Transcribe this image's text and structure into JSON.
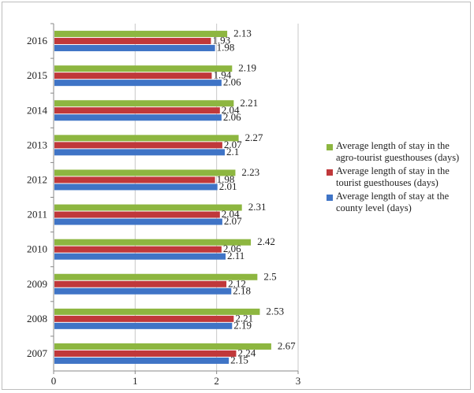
{
  "chart_data": {
    "type": "bar",
    "orientation": "horizontal",
    "categories": [
      "2007",
      "2008",
      "2009",
      "2010",
      "2011",
      "2012",
      "2013",
      "2014",
      "2015",
      "2016"
    ],
    "series": [
      {
        "name": "Average length of stay in the agro-tourist guesthouses (days)",
        "color": "#8db640",
        "values": [
          2.67,
          2.53,
          2.5,
          2.42,
          2.31,
          2.23,
          2.27,
          2.21,
          2.19,
          2.13
        ],
        "labels": [
          "2.67",
          "2.53",
          "2.5",
          "2.42",
          "2.31",
          "2.23",
          "2.27",
          "2.21",
          "2.19",
          "2.13"
        ]
      },
      {
        "name": "Average length of stay in the tourist guesthouses (days)",
        "color": "#c0383a",
        "values": [
          2.24,
          2.21,
          2.12,
          2.06,
          2.04,
          1.98,
          2.07,
          2.04,
          1.94,
          1.93
        ],
        "labels": [
          "2.24",
          "2.21",
          "2.12",
          "2.06",
          "2.04",
          "1.98",
          "2.07",
          "2.04",
          "1.94",
          "1.93"
        ]
      },
      {
        "name": "Average length of stay at the county level (days)",
        "color": "#3f74c6",
        "values": [
          2.15,
          2.19,
          2.18,
          2.11,
          2.07,
          2.01,
          2.1,
          2.06,
          2.06,
          1.98
        ],
        "labels": [
          "2.15",
          "2.19",
          "2.18",
          "2.11",
          "2.07",
          "2.01",
          "2.1",
          "2.06",
          "2.06",
          "1.98"
        ]
      }
    ],
    "xlim": [
      0,
      3
    ],
    "xticks": [
      "0",
      "1",
      "2",
      "3"
    ],
    "grid": true,
    "legend_position": "right",
    "title": "",
    "xlabel": "",
    "ylabel": ""
  }
}
